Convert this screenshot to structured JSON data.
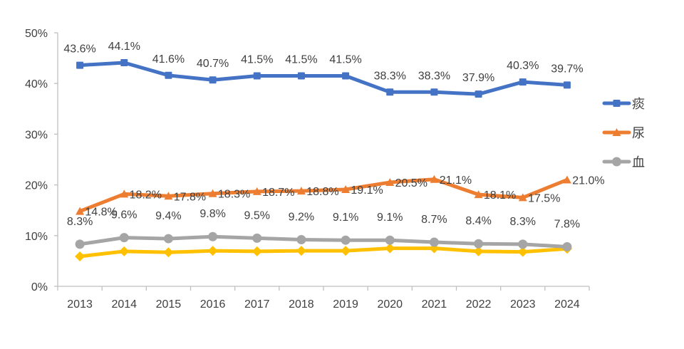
{
  "chart_data": {
    "type": "line",
    "title": "",
    "xlabel": "",
    "ylabel": "",
    "categories": [
      "2013",
      "2014",
      "2015",
      "2016",
      "2017",
      "2018",
      "2019",
      "2020",
      "2021",
      "2022",
      "2023",
      "2024"
    ],
    "ylim": [
      0,
      50
    ],
    "yticks": [
      "0%",
      "10%",
      "20%",
      "30%",
      "40%",
      "50%"
    ],
    "grid": false,
    "legend_position": "right",
    "series": [
      {
        "name": "痰",
        "color": "#4472C4",
        "marker": "square",
        "show_in_legend": true,
        "values": [
          43.6,
          44.1,
          41.6,
          40.7,
          41.5,
          41.5,
          41.5,
          38.3,
          38.3,
          37.9,
          40.3,
          39.7
        ],
        "labels": [
          "43.6%",
          "44.1%",
          "41.6%",
          "40.7%",
          "41.5%",
          "41.5%",
          "41.5%",
          "38.3%",
          "38.3%",
          "37.9%",
          "40.3%",
          "39.7%"
        ]
      },
      {
        "name": "尿",
        "color": "#ED7D31",
        "marker": "triangle",
        "show_in_legend": true,
        "values": [
          14.8,
          18.2,
          17.8,
          18.3,
          18.7,
          18.8,
          19.1,
          20.5,
          21.1,
          18.1,
          17.5,
          21.0
        ],
        "labels": [
          "14.8%",
          "18.2%",
          "17.8%",
          "18.3%",
          "18.7%",
          "18.8%",
          "19.1%",
          "20.5%",
          "21.1%",
          "18.1%",
          "17.5%",
          "21.0%"
        ]
      },
      {
        "name": "血",
        "color": "#A5A5A5",
        "marker": "circle",
        "show_in_legend": true,
        "values": [
          8.3,
          9.6,
          9.4,
          9.8,
          9.5,
          9.2,
          9.1,
          9.1,
          8.7,
          8.4,
          8.3,
          7.8
        ],
        "labels": [
          "8.3%",
          "9.6%",
          "9.4%",
          "9.8%",
          "9.5%",
          "9.2%",
          "9.1%",
          "9.1%",
          "8.7%",
          "8.4%",
          "8.3%",
          "7.8%"
        ]
      },
      {
        "name": "",
        "color": "#FFC000",
        "marker": "diamond",
        "show_in_legend": false,
        "values": [
          5.9,
          6.9,
          6.7,
          7.0,
          6.9,
          7.0,
          7.0,
          7.5,
          7.5,
          6.9,
          6.8,
          7.4
        ],
        "labels": []
      }
    ]
  }
}
